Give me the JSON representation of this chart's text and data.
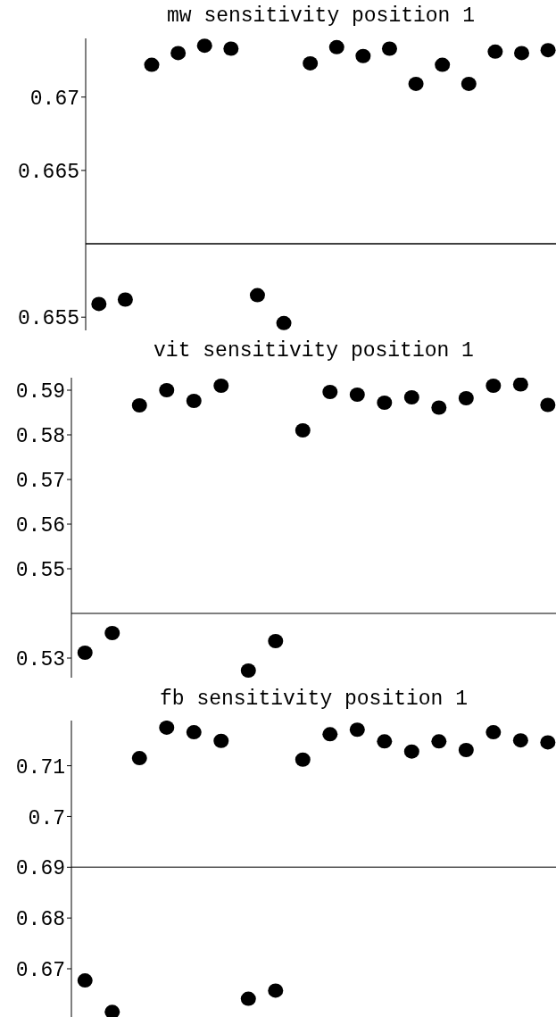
{
  "chart_data": [
    {
      "type": "scatter",
      "title": "mw sensitivity position 1",
      "categories": [
        null,
        null,
        null,
        null,
        null,
        null,
        null,
        null,
        null,
        null,
        null,
        null,
        null,
        null,
        null,
        null,
        null,
        null
      ],
      "values": [
        0.6559,
        0.6562,
        0.6722,
        0.673,
        0.6735,
        0.6733,
        0.6565,
        0.6546,
        0.6723,
        0.6734,
        0.6728,
        0.6733,
        0.6709,
        0.6722,
        0.6709,
        0.6731,
        0.673,
        0.6732
      ],
      "color": "#000000",
      "marker": "circle",
      "ylim": [
        0.6541,
        0.674
      ],
      "yticks": [
        0.655,
        0.665,
        0.67
      ],
      "tick_labels": "y",
      "ref_lines": [
        {
          "axis": "y",
          "value": 0.66,
          "color": "#000000"
        }
      ]
    },
    {
      "type": "scatter",
      "title": "vit sensitivity position 1",
      "categories": [
        null,
        null,
        null,
        null,
        null,
        null,
        null,
        null,
        null,
        null,
        null,
        null,
        null,
        null,
        null,
        null,
        null,
        null
      ],
      "values": [
        0.5312,
        0.5356,
        0.5866,
        0.59,
        0.5876,
        0.591,
        0.5272,
        0.5338,
        0.581,
        0.5896,
        0.589,
        0.5872,
        0.5884,
        0.5861,
        0.5882,
        0.591,
        0.5913,
        0.5867
      ],
      "color": "#000000",
      "marker": "circle",
      "ylim": [
        0.5256,
        0.5928
      ],
      "yticks": [
        0.53,
        0.55,
        0.56,
        0.57,
        0.58,
        0.59
      ],
      "tick_labels": "y",
      "ref_lines": [
        {
          "axis": "y",
          "value": 0.54,
          "color": "#555555"
        }
      ]
    },
    {
      "type": "scatter",
      "title": "fb sensitivity position 1",
      "categories": [
        null,
        null,
        null,
        null,
        null,
        null,
        null,
        null,
        null,
        null,
        null,
        null,
        null,
        null,
        null,
        null,
        null,
        null
      ],
      "values": [
        0.6677,
        0.6615,
        0.7115,
        0.7175,
        0.7166,
        0.7149,
        0.6641,
        0.6657,
        0.7112,
        0.7162,
        0.7171,
        0.7148,
        0.7128,
        0.7148,
        0.7131,
        0.7166,
        0.715,
        0.7146
      ],
      "color": "#000000",
      "marker": "circle",
      "ylim": [
        0.6605,
        0.7189
      ],
      "yticks": [
        0.67,
        0.68,
        0.69,
        0.7,
        0.71
      ],
      "tick_labels": "y",
      "ref_lines": [
        {
          "axis": "y",
          "value": 0.69,
          "color": "#555555"
        }
      ]
    }
  ]
}
